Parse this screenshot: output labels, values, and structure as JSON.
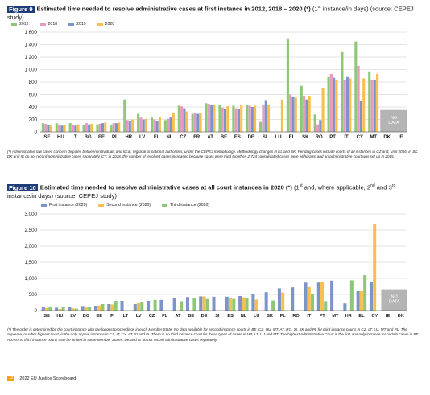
{
  "figure9": {
    "tag": "Figure 9",
    "title": "Estimated time needed to resolve administrative cases at first instance in 2012, 2018 – 2020 (*)",
    "subtitle_a": " (1",
    "subtitle_sup": "st",
    "subtitle_b": " instance/in days) (source: CEPEJ study)",
    "note": "(*) Administrative law cases concern disputes between individuals and local, regional or national authorities, under the CEPEJ methodology. Methodology changes in EL and SK. Pending cases include courts of all instances in CZ and, until 2016, in SK. DK and IE do not record administrative cases separately. CY: in 2018, the number of resolved cases increased because cases were tried together, 2 724 consolidated cases were withdrawn and an administrative court was set up in 2015.",
    "no_data": [
      "NO",
      "DATA"
    ],
    "chart_data": {
      "type": "bar",
      "categories": [
        "SE",
        "HU",
        "LT",
        "BG",
        "EE",
        "PL",
        "HR",
        "LV",
        "FI",
        "NL",
        "CZ",
        "FR",
        "AT",
        "BE",
        "ES",
        "DE",
        "SI",
        "LU",
        "EL",
        "SK",
        "RO",
        "PT",
        "IT",
        "CY",
        "MT",
        "DK",
        "IE"
      ],
      "ylim": [
        0,
        1600
      ],
      "yticks": [
        0,
        200,
        400,
        600,
        800,
        "1 000",
        "1 200",
        "1 400",
        "1 600"
      ],
      "series": [
        {
          "name": "2012",
          "color": "#8cc878",
          "values": [
            140,
            140,
            140,
            110,
            120,
            110,
            520,
            290,
            230,
            190,
            420,
            290,
            460,
            430,
            420,
            430,
            160,
            null,
            1500,
            740,
            280,
            880,
            1280,
            1450,
            970,
            null,
            null
          ]
        },
        {
          "name": "2018",
          "color": "#e59ac4",
          "values": [
            130,
            120,
            110,
            140,
            130,
            140,
            190,
            230,
            200,
            210,
            410,
            300,
            450,
            390,
            380,
            420,
            440,
            null,
            600,
            580,
            120,
            930,
            840,
            1060,
            830,
            null,
            null
          ]
        },
        {
          "name": "2019",
          "color": "#7c94c8",
          "values": [
            110,
            100,
            100,
            120,
            140,
            140,
            170,
            200,
            180,
            230,
            380,
            290,
            430,
            370,
            370,
            400,
            510,
            null,
            570,
            520,
            190,
            870,
            880,
            490,
            840,
            null,
            null
          ]
        },
        {
          "name": "2020",
          "color": "#f7c04c",
          "values": [
            100,
            110,
            120,
            130,
            150,
            150,
            200,
            210,
            240,
            300,
            330,
            310,
            440,
            410,
            430,
            420,
            440,
            520,
            550,
            580,
            700,
            830,
            860,
            860,
            930,
            null,
            null
          ]
        }
      ]
    }
  },
  "figure10": {
    "tag": "Figure 10",
    "title": "Estimated time needed to resolve administrative cases at all court instances in 2020 (*)",
    "subtitle_a": " (1",
    "subtitle_sup1": "st",
    "subtitle_b": " and, where applicable, 2",
    "subtitle_sup2": "nd",
    "subtitle_c": " and 3",
    "subtitle_sup3": "rd",
    "subtitle_d": " instance/in days) (source: CEPEJ study)",
    "note": "(*) The order is determined by the court instance with the longest proceedings in each Member State. No data available for second instance courts in BE, CZ, HU, MT, AT, RO, SI, SK and PL for third instance courts in CZ, LT, LU, MT and PL. The supreme, or other highest court, is the only appeal instance in CZ, IT, CY, AT, SI and FI. There is no third instance court for these types of cases in HR, LT, LU and MT. The highest Administrative Court is the first and only instance for certain cases in BE. Access to third instance courts may be limited in some Member States. DK and IE do not record administrative cases separately.",
    "no_data": [
      "NO",
      "DATA"
    ],
    "chart_data": {
      "type": "bar",
      "categories": [
        "SE",
        "HU",
        "LV",
        "BG",
        "EE",
        "FI",
        "LT",
        "LV",
        "CZ",
        "PL",
        "AT",
        "BE",
        "DE",
        "SI",
        "ES",
        "NL",
        "LU",
        "SK",
        "PL",
        "RO",
        "IT",
        "PT",
        "MT",
        "HR",
        "EL",
        "CY",
        "IE",
        "DK"
      ],
      "ylim": [
        0,
        3000
      ],
      "yticks": [
        "0",
        "500",
        "1,000",
        "1,500",
        "2,000",
        "2,500",
        "3,000"
      ],
      "series": [
        {
          "name": "First instance (2020)",
          "color": "#7c94c8",
          "values": [
            100,
            90,
            110,
            140,
            150,
            200,
            300,
            200,
            300,
            330,
            400,
            420,
            440,
            430,
            430,
            450,
            520,
            570,
            690,
            720,
            870,
            870,
            930,
            220,
            600,
            880,
            null,
            null
          ]
        },
        {
          "name": "Second instance (2020)",
          "color": "#f7c04c",
          "values": [
            80,
            50,
            70,
            120,
            160,
            190,
            null,
            230,
            null,
            null,
            null,
            null,
            440,
            null,
            400,
            410,
            340,
            null,
            560,
            null,
            730,
            900,
            null,
            null,
            600,
            2700,
            null,
            null
          ]
        },
        {
          "name": "Third instance (2020)",
          "color": "#8cc878",
          "values": [
            120,
            110,
            60,
            100,
            200,
            300,
            null,
            260,
            330,
            null,
            290,
            390,
            360,
            null,
            360,
            400,
            null,
            310,
            null,
            null,
            500,
            290,
            null,
            940,
            1100,
            null,
            null,
            null
          ]
        }
      ]
    }
  },
  "footer": {
    "page": "12",
    "text": "2022 EU Justice Scoreboard"
  }
}
